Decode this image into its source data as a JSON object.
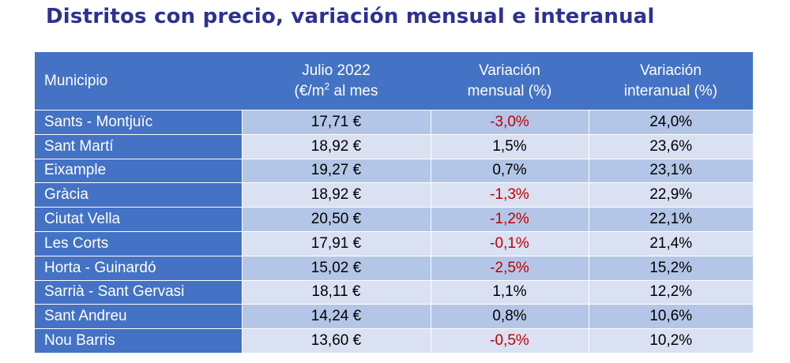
{
  "title": "Distritos con precio, variación mensual e interanual",
  "colors": {
    "header": "#4472c4",
    "row_odd": "#b4c6e7",
    "row_even": "#d9e1f2",
    "negative": "#c00000",
    "title": "#2e3192"
  },
  "header": {
    "col0": "Municipio",
    "col1_line1": "Julio 2022",
    "col1_line2_pre": "(€/m",
    "col1_line2_sup": "2",
    "col1_line2_post": " al mes",
    "col2_line1": "Variación",
    "col2_line2": "mensual (%)",
    "col3_line1": "Variación",
    "col3_line2": "interanual (%)"
  },
  "rows": [
    {
      "district": "Sants - Montjuïc",
      "price": "17,71 €",
      "monthly": "-3,0%",
      "annual": "24,0%"
    },
    {
      "district": "Sant Martí",
      "price": "18,92 €",
      "monthly": "1,5%",
      "annual": "23,6%"
    },
    {
      "district": "Eixample",
      "price": "19,27 €",
      "monthly": "0,7%",
      "annual": "23,1%"
    },
    {
      "district": "Gràcia",
      "price": "18,92 €",
      "monthly": "-1,3%",
      "annual": "22,9%"
    },
    {
      "district": "Ciutat Vella",
      "price": "20,50 €",
      "monthly": "-1,2%",
      "annual": "22,1%"
    },
    {
      "district": "Les Corts",
      "price": "17,91 €",
      "monthly": "-0,1%",
      "annual": "21,4%"
    },
    {
      "district": "Horta - Guinardó",
      "price": "15,02 €",
      "monthly": "-2,5%",
      "annual": "15,2%"
    },
    {
      "district": "Sarrià - Sant Gervasi",
      "price": "18,11 €",
      "monthly": "1,1%",
      "annual": "12,2%"
    },
    {
      "district": "Sant Andreu",
      "price": "14,24 €",
      "monthly": "0,8%",
      "annual": "10,6%"
    },
    {
      "district": "Nou Barris",
      "price": "13,60 €",
      "monthly": "-0,5%",
      "annual": "10,2%"
    }
  ]
}
